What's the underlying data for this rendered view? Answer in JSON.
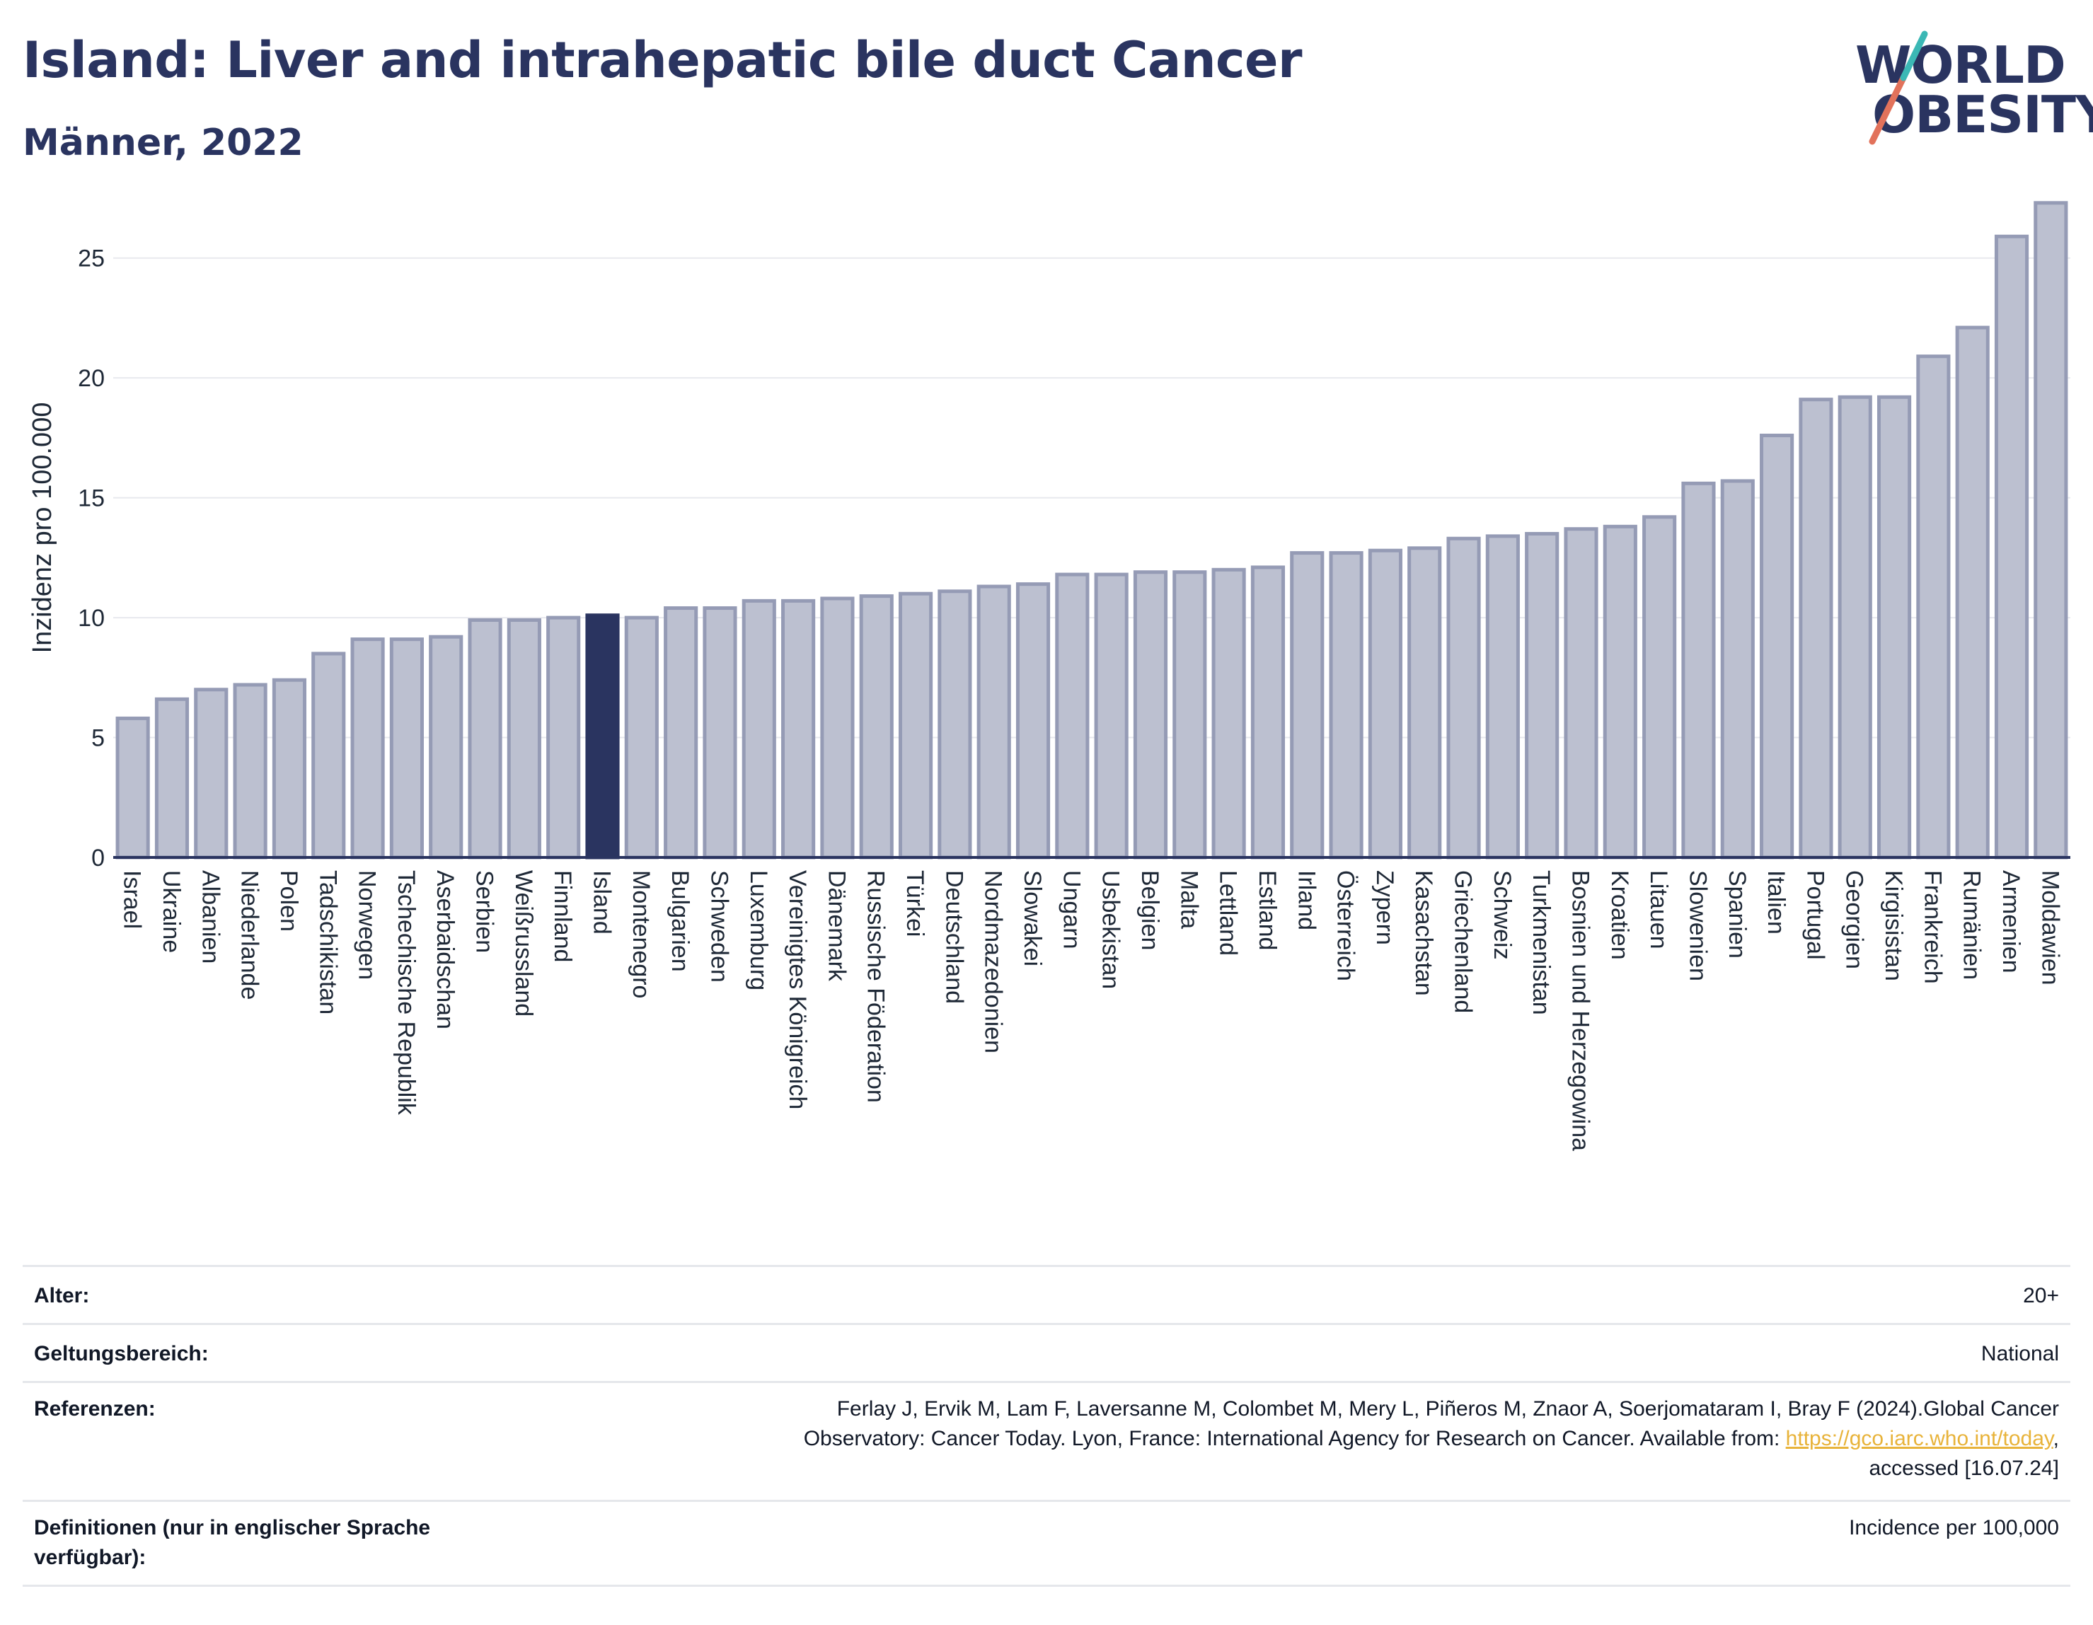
{
  "title": "Island: Liver and intrahepatic bile duct Cancer",
  "subtitle": "Männer, 2022",
  "logo": {
    "line1": "WORLD",
    "line2": "OBESITY"
  },
  "colors": {
    "bar": "#bcc0d0",
    "bar_border": "#959bb5",
    "highlight": "#2a3460",
    "grid": "#e8e9ee",
    "axis": "#2a3460",
    "link": "#e8b33a"
  },
  "chart_data": {
    "type": "bar",
    "ylabel": "Inzidenz pro 100.000",
    "ylim": [
      0,
      27.5
    ],
    "yticks": [
      0,
      5,
      10,
      15,
      20,
      25
    ],
    "highlight": "Island",
    "categories": [
      "Israel",
      "Ukraine",
      "Albanien",
      "Niederlande",
      "Polen",
      "Tadschikistan",
      "Norwegen",
      "Tschechische Republik",
      "Aserbaidschan",
      "Serbien",
      "Weißrussland",
      "Finnland",
      "Island",
      "Montenegro",
      "Bulgarien",
      "Schweden",
      "Luxemburg",
      "Vereinigtes Königreich",
      "Dänemark",
      "Russische Föderation",
      "Türkei",
      "Deutschland",
      "Nordmazedonien",
      "Slowakei",
      "Ungarn",
      "Usbekistan",
      "Belgien",
      "Malta",
      "Lettland",
      "Estland",
      "Irland",
      "Österreich",
      "Zypern",
      "Kasachstan",
      "Griechenland",
      "Schweiz",
      "Turkmenistan",
      "Bosnien und Herzegowina",
      "Kroatien",
      "Litauen",
      "Slowenien",
      "Spanien",
      "Italien",
      "Portugal",
      "Georgien",
      "Kirgisistan",
      "Frankreich",
      "Rumänien",
      "Armenien",
      "Moldawien"
    ],
    "values": [
      5.8,
      6.6,
      7.0,
      7.2,
      7.4,
      8.5,
      9.1,
      9.1,
      9.2,
      9.9,
      9.9,
      10.0,
      10.1,
      10.0,
      10.4,
      10.4,
      10.7,
      10.7,
      10.8,
      10.9,
      11.0,
      11.1,
      11.3,
      11.4,
      11.8,
      11.8,
      11.9,
      11.9,
      12.0,
      12.1,
      12.7,
      12.7,
      12.8,
      12.9,
      13.3,
      13.4,
      13.5,
      13.7,
      13.8,
      14.2,
      15.6,
      15.7,
      17.6,
      19.1,
      19.2,
      19.2,
      20.9,
      22.1,
      25.9,
      27.3
    ]
  },
  "meta": {
    "age_label": "Alter:",
    "age_value": "20+",
    "scope_label": "Geltungsbereich:",
    "scope_value": "National",
    "ref_label": "Referenzen:",
    "ref_line1": "Ferlay J, Ervik M, Lam F, Laversanne M, Colombet M, Mery L, Piñeros M, Znaor A, Soerjomataram I, Bray F (2024).Global Cancer",
    "ref_line2": "Observatory: Cancer Today. Lyon, France: International Agency for Research on Cancer. Available from: ",
    "ref_link": "https://gco.iarc.who.int/today",
    "ref_line2_end": ",",
    "ref_line3": "accessed [16.07.24]",
    "def_label_1": "Definitionen (nur in englischer Sprache",
    "def_label_2": "verfügbar):",
    "def_value": "Incidence per 100,000"
  }
}
